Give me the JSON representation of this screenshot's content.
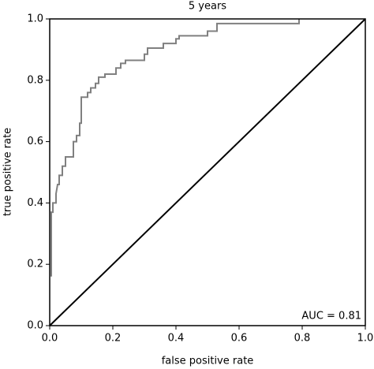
{
  "chart_data": {
    "type": "line",
    "title": "5 years",
    "x_label": "false positive rate",
    "y_label": "true positive rate",
    "annotation": "AUC = 0.81",
    "color": "#808080",
    "diagonal": true,
    "x": [
      0.005,
      0.005,
      0.01,
      0.01,
      0.02,
      0.02,
      0.025,
      0.03,
      0.03,
      0.04,
      0.04,
      0.05,
      0.05,
      0.075,
      0.075,
      0.085,
      0.085,
      0.095,
      0.095,
      0.1,
      0.1,
      0.12,
      0.12,
      0.13,
      0.13,
      0.145,
      0.145,
      0.155,
      0.155,
      0.175,
      0.175,
      0.21,
      0.21,
      0.225,
      0.225,
      0.24,
      0.24,
      0.3,
      0.3,
      0.31,
      0.31,
      0.36,
      0.36,
      0.4,
      0.4,
      0.41,
      0.41,
      0.5,
      0.5,
      0.53,
      0.53,
      0.79,
      0.79
    ],
    "values": [
      0.16,
      0.37,
      0.37,
      0.4,
      0.4,
      0.43,
      0.46,
      0.46,
      0.49,
      0.49,
      0.52,
      0.52,
      0.55,
      0.55,
      0.6,
      0.6,
      0.62,
      0.62,
      0.66,
      0.66,
      0.745,
      0.745,
      0.76,
      0.76,
      0.775,
      0.775,
      0.79,
      0.79,
      0.81,
      0.81,
      0.82,
      0.82,
      0.84,
      0.84,
      0.855,
      0.855,
      0.865,
      0.865,
      0.885,
      0.885,
      0.905,
      0.905,
      0.92,
      0.92,
      0.935,
      0.935,
      0.945,
      0.945,
      0.96,
      0.96,
      0.985,
      0.985,
      1.0
    ],
    "xlim": [
      0,
      1
    ],
    "ylim": [
      0,
      1
    ],
    "xticks": [
      {
        "value": 0,
        "label": "0.0"
      },
      0.2,
      0.4,
      0.6,
      0.8,
      {
        "value": 1,
        "label": "1.0"
      }
    ],
    "yticks": [
      {
        "value": 0,
        "label": "0.0"
      },
      0.2,
      0.4,
      0.6,
      0.8,
      {
        "value": 1,
        "label": "1.0"
      }
    ]
  }
}
